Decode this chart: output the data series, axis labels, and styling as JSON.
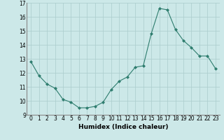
{
  "x": [
    0,
    1,
    2,
    3,
    4,
    5,
    6,
    7,
    8,
    9,
    10,
    11,
    12,
    13,
    14,
    15,
    16,
    17,
    18,
    19,
    20,
    21,
    22,
    23
  ],
  "y": [
    12.8,
    11.8,
    11.2,
    10.9,
    10.1,
    9.9,
    9.5,
    9.5,
    9.6,
    9.9,
    10.8,
    11.4,
    11.7,
    12.4,
    12.5,
    14.8,
    16.6,
    16.5,
    15.1,
    14.3,
    13.8,
    13.2,
    13.2,
    12.3
  ],
  "xlabel": "Humidex (Indice chaleur)",
  "ylim": [
    9,
    17
  ],
  "xlim": [
    -0.5,
    23.5
  ],
  "yticks": [
    9,
    10,
    11,
    12,
    13,
    14,
    15,
    16,
    17
  ],
  "xticks": [
    0,
    1,
    2,
    3,
    4,
    5,
    6,
    7,
    8,
    9,
    10,
    11,
    12,
    13,
    14,
    15,
    16,
    17,
    18,
    19,
    20,
    21,
    22,
    23
  ],
  "line_color": "#2e7d6e",
  "marker_color": "#2e7d6e",
  "bg_color": "#cce8e8",
  "grid_color": "#aacccc",
  "xlabel_fontsize": 6.5,
  "tick_fontsize": 5.5
}
